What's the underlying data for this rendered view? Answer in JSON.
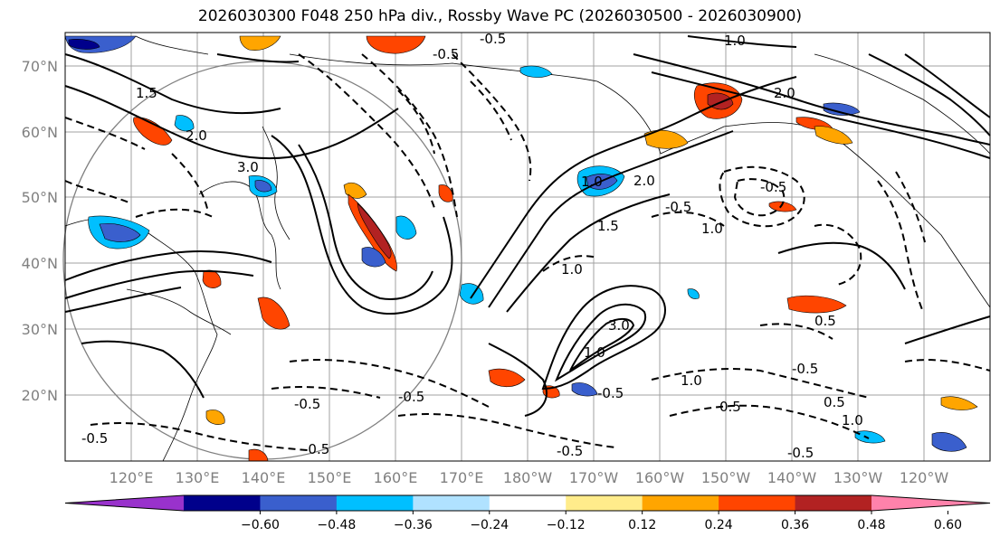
{
  "title": "2026030300 F048 250 hPa div., Rossby Wave PC (2026030500 - 2026030900)",
  "lat_labels": [
    "70°N",
    "60°N",
    "50°N",
    "40°N",
    "30°N",
    "20°N"
  ],
  "lon_labels": [
    "120°E",
    "130°E",
    "140°E",
    "150°E",
    "160°E",
    "170°E",
    "180°W",
    "170°W",
    "160°W",
    "150°W",
    "140°W",
    "130°W",
    "120°W"
  ],
  "colorbar": {
    "colors": [
      "#9932cc",
      "#00008b",
      "#3a5fcd",
      "#00bfff",
      "#b0e2ff",
      "#ffffff",
      "#ffec8b",
      "#ffa500",
      "#ff4500",
      "#b22222",
      "#ff82ab"
    ],
    "tick_labels": [
      "-0.60",
      "-0.48",
      "-0.36",
      "-0.24",
      "-0.12",
      "0.12",
      "0.24",
      "0.36",
      "0.48",
      "0.60"
    ]
  },
  "contour_labels": [
    "-0.5",
    "1.0",
    "2.0",
    "1.5",
    "-0.5",
    "3.0",
    "2.0",
    "1.0",
    "-0.5",
    "1.0",
    "2.0",
    "-0.5",
    "1.5",
    "1.0",
    "3.0",
    "1.0",
    "-0.5",
    "0.5",
    "-0.5",
    "-0.5",
    "0.5",
    "1.0",
    "-0.5",
    "-0.5",
    "-0.5",
    "0.5",
    "-0.5",
    "-0.5",
    "1.0"
  ]
}
